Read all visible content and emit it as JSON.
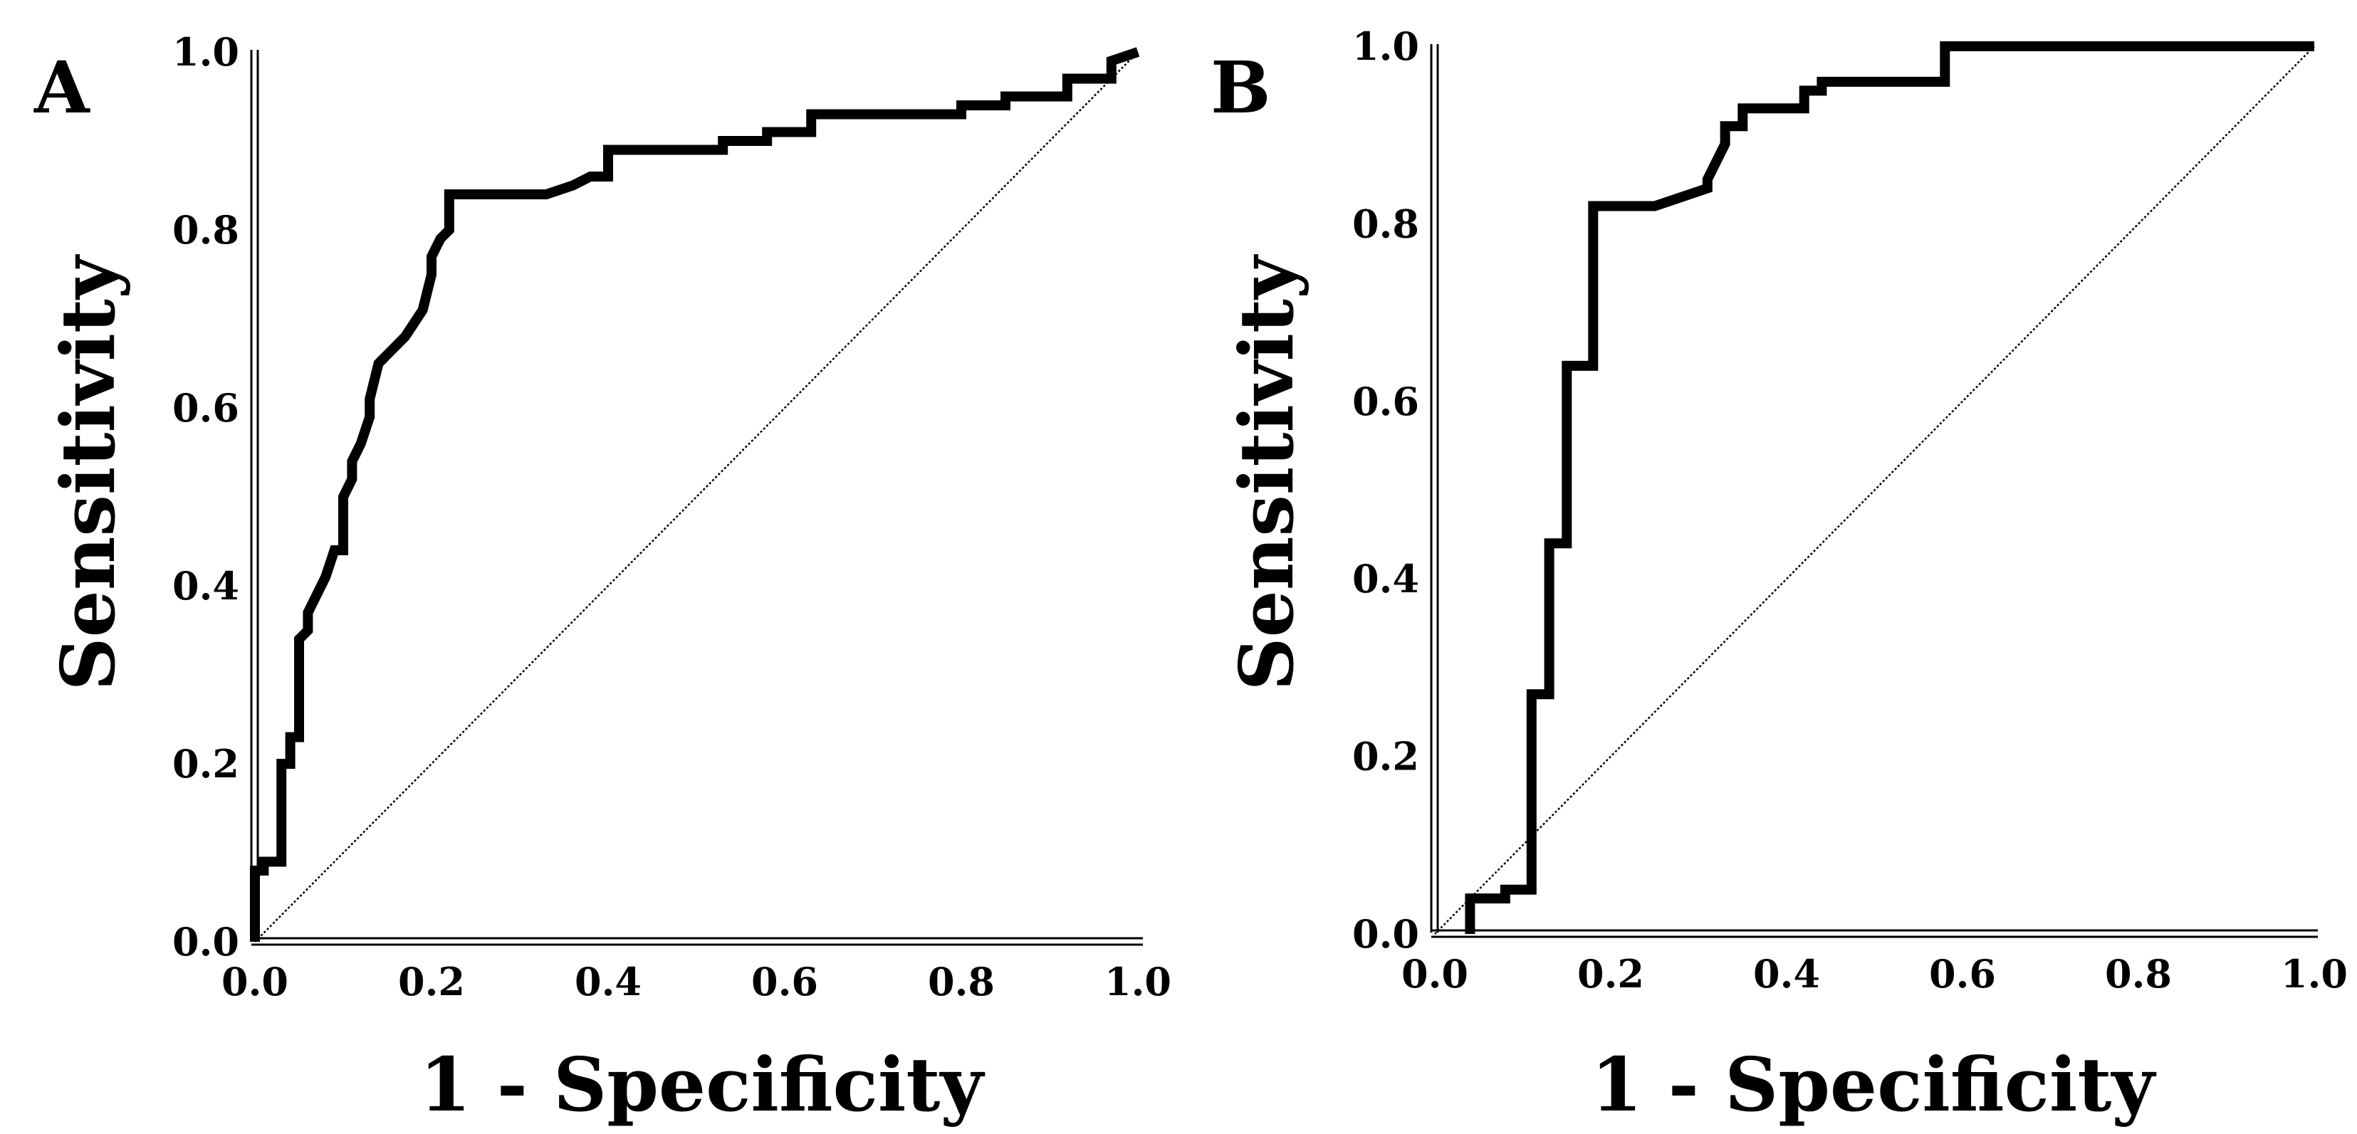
{
  "chart_data": [
    {
      "type": "line",
      "panel_label": "A",
      "xlabel": "1 - Specificity",
      "ylabel": "Sensitivity",
      "xlim": [
        0,
        1
      ],
      "ylim": [
        0,
        1
      ],
      "x_ticks": [
        "0.0",
        "0.2",
        "0.4",
        "0.6",
        "0.8",
        "1.0"
      ],
      "y_ticks": [
        "0.0",
        "0.2",
        "0.4",
        "0.6",
        "0.8",
        "1.0"
      ],
      "series": [
        {
          "name": "ROC curve",
          "x": [
            0.0,
            0.0,
            0.01,
            0.01,
            0.03,
            0.03,
            0.04,
            0.04,
            0.05,
            0.05,
            0.06,
            0.06,
            0.07,
            0.08,
            0.09,
            0.1,
            0.1,
            0.11,
            0.11,
            0.12,
            0.13,
            0.13,
            0.14,
            0.15,
            0.17,
            0.19,
            0.2,
            0.2,
            0.21,
            0.22,
            0.22,
            0.33,
            0.36,
            0.38,
            0.4,
            0.4,
            0.53,
            0.53,
            0.58,
            0.58,
            0.63,
            0.63,
            0.8,
            0.8,
            0.85,
            0.85,
            0.92,
            0.92,
            0.97,
            0.97,
            1.0
          ],
          "y": [
            0.0,
            0.08,
            0.08,
            0.09,
            0.09,
            0.2,
            0.2,
            0.23,
            0.23,
            0.34,
            0.35,
            0.37,
            0.39,
            0.41,
            0.44,
            0.44,
            0.5,
            0.52,
            0.54,
            0.56,
            0.59,
            0.61,
            0.65,
            0.66,
            0.68,
            0.71,
            0.75,
            0.77,
            0.79,
            0.8,
            0.84,
            0.84,
            0.85,
            0.86,
            0.86,
            0.89,
            0.89,
            0.9,
            0.9,
            0.91,
            0.91,
            0.93,
            0.93,
            0.94,
            0.94,
            0.95,
            0.95,
            0.97,
            0.97,
            0.99,
            1.0
          ]
        },
        {
          "name": "Reference line",
          "x": [
            0,
            1
          ],
          "y": [
            0,
            1
          ]
        }
      ]
    },
    {
      "type": "line",
      "panel_label": "B",
      "xlabel": "1 - Specificity",
      "ylabel": "Sensitivity",
      "xlim": [
        0,
        1
      ],
      "ylim": [
        0,
        1
      ],
      "x_ticks": [
        "0.0",
        "0.2",
        "0.4",
        "0.6",
        "0.8",
        "1.0"
      ],
      "y_ticks": [
        "0.0",
        "0.2",
        "0.4",
        "0.6",
        "0.8",
        "1.0"
      ],
      "series": [
        {
          "name": "ROC curve",
          "x": [
            0.04,
            0.04,
            0.08,
            0.08,
            0.11,
            0.11,
            0.13,
            0.13,
            0.15,
            0.15,
            0.18,
            0.18,
            0.25,
            0.31,
            0.31,
            0.33,
            0.33,
            0.35,
            0.35,
            0.42,
            0.42,
            0.44,
            0.44,
            0.58,
            0.58,
            1.0
          ],
          "y": [
            0.0,
            0.04,
            0.04,
            0.05,
            0.05,
            0.27,
            0.27,
            0.44,
            0.44,
            0.64,
            0.64,
            0.82,
            0.82,
            0.84,
            0.85,
            0.89,
            0.91,
            0.91,
            0.93,
            0.93,
            0.95,
            0.95,
            0.96,
            0.96,
            1.0,
            1.0
          ]
        },
        {
          "name": "Reference line",
          "x": [
            0,
            1
          ],
          "y": [
            0,
            1
          ]
        }
      ]
    }
  ]
}
